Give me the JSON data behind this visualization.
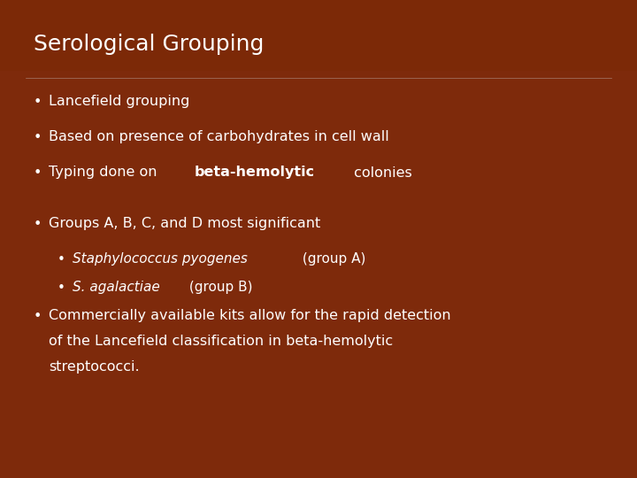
{
  "title": "Serological Grouping",
  "title_color": "#ffffff",
  "title_fontsize": 18,
  "title_bold": false,
  "bg_color": "#8B3010",
  "text_color": "#ffffff",
  "bullet_fontsize": 11.5,
  "sub_bullet_fontsize": 11,
  "bullets": [
    {
      "type": "bullet",
      "indent": 0,
      "parts": [
        {
          "text": "Lancefield grouping",
          "bold": false,
          "italic": false
        }
      ]
    },
    {
      "type": "bullet",
      "indent": 0,
      "parts": [
        {
          "text": "Based on presence of carbohydrates in cell wall",
          "bold": false,
          "italic": false
        }
      ]
    },
    {
      "type": "bullet",
      "indent": 0,
      "parts": [
        {
          "text": "Typing done on ",
          "bold": false,
          "italic": false
        },
        {
          "text": "beta-hemolytic",
          "bold": true,
          "italic": false
        },
        {
          "text": " colonies",
          "bold": false,
          "italic": false
        }
      ]
    },
    {
      "type": "spacer"
    },
    {
      "type": "bullet",
      "indent": 0,
      "parts": [
        {
          "text": "Groups A, B, C, and D most significant",
          "bold": false,
          "italic": false
        }
      ]
    },
    {
      "type": "bullet",
      "indent": 1,
      "parts": [
        {
          "text": "Staphylococcus pyogenes",
          "bold": false,
          "italic": true
        },
        {
          "text": " (group A)",
          "bold": false,
          "italic": false
        }
      ]
    },
    {
      "type": "bullet",
      "indent": 1,
      "parts": [
        {
          "text": "S. agalactiae",
          "bold": false,
          "italic": true
        },
        {
          "text": " (group B)",
          "bold": false,
          "italic": false
        }
      ]
    },
    {
      "type": "bullet",
      "indent": 0,
      "multiline": true,
      "lines": [
        [
          {
            "text": "Commercially available kits allow for the rapid detection",
            "bold": false,
            "italic": false
          }
        ],
        [
          {
            "text": "of the Lancefield classification in beta-hemolytic",
            "bold": false,
            "italic": false
          }
        ],
        [
          {
            "text": "streptococci.",
            "bold": false,
            "italic": false
          }
        ]
      ]
    }
  ]
}
